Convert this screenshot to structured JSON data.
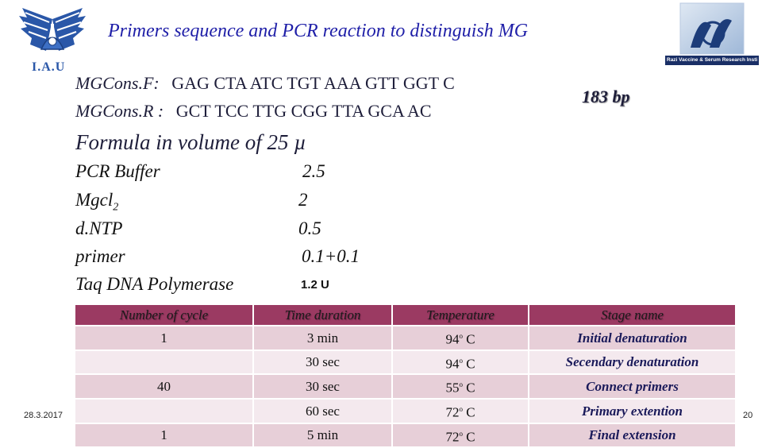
{
  "title": "Primers sequence and PCR reaction to distinguish MG",
  "logo_left": {
    "text": "I.A.U",
    "color": "#2a57a8"
  },
  "logo_right": {
    "text": "Razi Vaccine & Serum Research Institute"
  },
  "primers": [
    {
      "name": "MGCons.F:",
      "sequence": "GAG CTA ATC TGT AAA GTT GGT C"
    },
    {
      "name": "MGCons.R :",
      "sequence": "GCT TCC TTG CGG TTA GCA AC"
    }
  ],
  "product_size": "183 bp",
  "formula_heading": "Formula in volume of 25 µ",
  "ingredients": [
    {
      "name": "PCR Buffer",
      "amount": "2.5"
    },
    {
      "name": "Mgcl",
      "sub": "2",
      "amount": "2"
    },
    {
      "name": "d.NTP",
      "amount": "0.5"
    },
    {
      "name": "primer",
      "amount": "0.1+0.1"
    },
    {
      "name": "Taq DNA Polymerase",
      "amount": "1.2 U"
    }
  ],
  "table": {
    "headers": [
      "Number of cycle",
      "Time duration",
      "Temperature",
      "Stage name"
    ],
    "rows": [
      {
        "cycle": "1",
        "time": "3  min",
        "temp": "94",
        "unit": "C",
        "stage": "Initial denaturation"
      },
      {
        "cycle": "",
        "time": "30 sec",
        "temp": "94",
        "unit": "C",
        "stage": "Secendary denaturation"
      },
      {
        "cycle": "40",
        "time": "30 sec",
        "temp": "55",
        "unit": "C",
        "stage": "Connect primers"
      },
      {
        "cycle": "",
        "time": "60 sec",
        "temp": "72",
        "unit": "C",
        "stage": "Primary extention"
      },
      {
        "cycle": "1",
        "time": "5 min",
        "temp": "72",
        "unit": "C",
        "stage": "Final extension"
      }
    ],
    "degree_mark": "o"
  },
  "footer": {
    "date": "28.3.2017",
    "page": "20"
  },
  "colors": {
    "title": "#1f1fa8",
    "header_bg": "#9b3a62",
    "row_odd": "#e7cfd8",
    "row_even": "#f4e9ee"
  }
}
